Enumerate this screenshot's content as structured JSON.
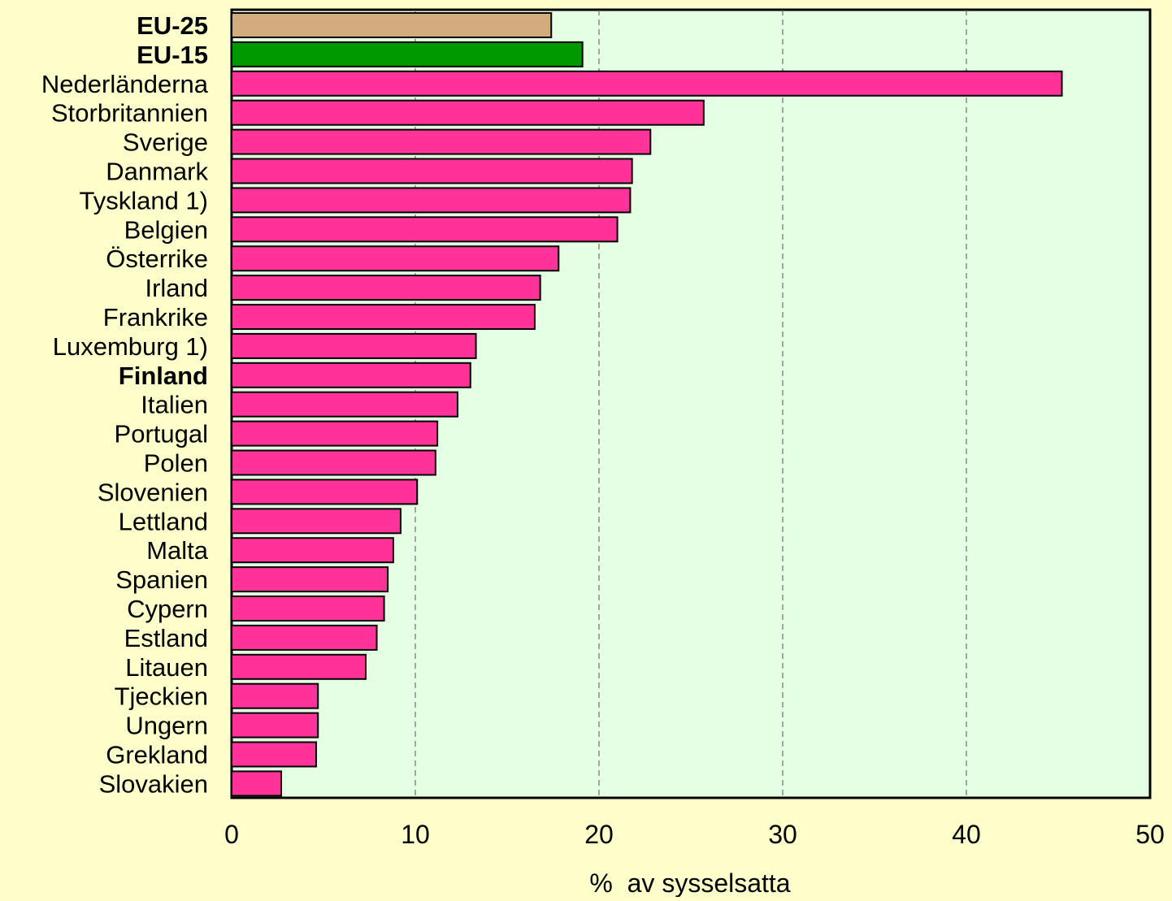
{
  "chart_data": {
    "type": "bar",
    "orientation": "horizontal",
    "categories": [
      "EU-25",
      "EU-15",
      "Nederländerna",
      "Storbritannien",
      "Sverige",
      "Danmark",
      "Tyskland 1)",
      "Belgien",
      "Österrike",
      "Irland",
      "Frankrike",
      "Luxemburg 1)",
      "Finland",
      "Italien",
      "Portugal",
      "Polen",
      "Slovenien",
      "Lettland",
      "Malta",
      "Spanien",
      "Cypern",
      "Estland",
      "Litauen",
      "Tjeckien",
      "Ungern",
      "Grekland",
      "Slovakien"
    ],
    "values": [
      17.4,
      19.1,
      45.2,
      25.7,
      22.8,
      21.8,
      21.7,
      21.0,
      17.8,
      16.8,
      16.5,
      13.3,
      13.0,
      12.3,
      11.2,
      11.1,
      10.1,
      9.2,
      8.8,
      8.5,
      8.3,
      7.9,
      7.3,
      4.7,
      4.7,
      4.6,
      2.7
    ],
    "bold_categories": [
      "EU-25",
      "EU-15",
      "Finland"
    ],
    "bar_colors": {
      "EU-25": "#d2ac7c",
      "EU-15": "#009900",
      "default": "#ff3399"
    },
    "xlabel": "%  av sysselsatta",
    "ylabel": "",
    "title": "",
    "xlim": [
      0,
      50
    ],
    "xticks": [
      0,
      10,
      20,
      30,
      40,
      50
    ],
    "grid": "vertical dashed",
    "plot_background": "#e5ffe5",
    "page_background": "#ffffcc"
  }
}
